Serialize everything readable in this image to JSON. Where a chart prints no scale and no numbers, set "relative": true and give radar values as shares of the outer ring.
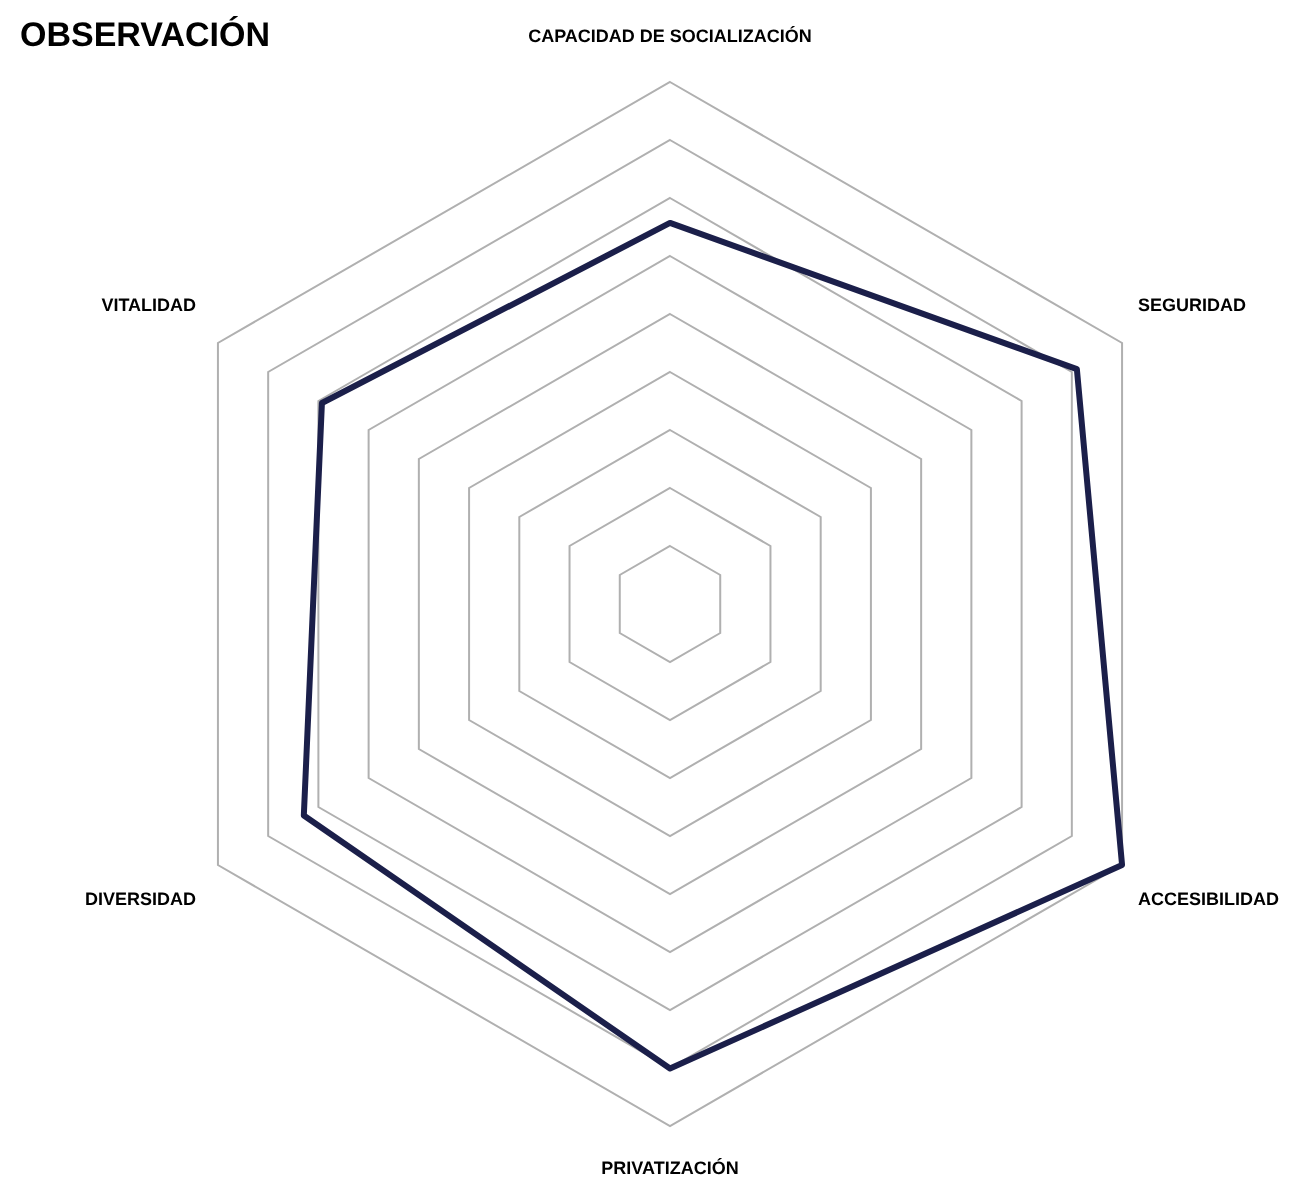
{
  "chart_data": {
    "type": "radar",
    "title": "OBSERVACIÓN",
    "categories": [
      "CAPACIDAD DE SOCIALIZACIÓN",
      "SEGURIDAD",
      "ACCESIBILIDAD",
      "PRIVATIZACIÓN",
      "DIVERSIDAD",
      "VITALIDAD"
    ],
    "relative": true,
    "grid": true,
    "marker": "none",
    "series": [
      {
        "color": "#1b1f4a",
        "values": [
          0.73,
          0.9,
          1.0,
          0.89,
          0.81,
          0.77
        ]
      }
    ]
  }
}
